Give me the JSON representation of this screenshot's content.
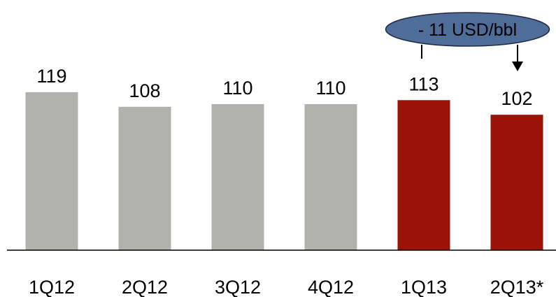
{
  "chart_data": {
    "type": "bar",
    "title": "",
    "xlabel": "",
    "ylabel": "",
    "categories": [
      "1Q12",
      "2Q12",
      "3Q12",
      "4Q12",
      "1Q13",
      "2Q13*"
    ],
    "values": [
      119,
      108,
      110,
      110,
      113,
      102
    ],
    "data_labels": [
      "119",
      "108",
      "110",
      "110",
      "113",
      "102"
    ],
    "bar_colors": [
      "#b2b2ac",
      "#b2b2ac",
      "#b2b2ac",
      "#b2b2ac",
      "#9b1306",
      "#9b1306"
    ],
    "ylim": [
      0,
      150
    ],
    "grid": false,
    "legend": "none",
    "annotation": {
      "text": "- 11 USD/bbl",
      "from_category": "1Q13",
      "to_category": "2Q13*",
      "fill": "#4f6d99",
      "stroke": "#1f2b44"
    }
  }
}
